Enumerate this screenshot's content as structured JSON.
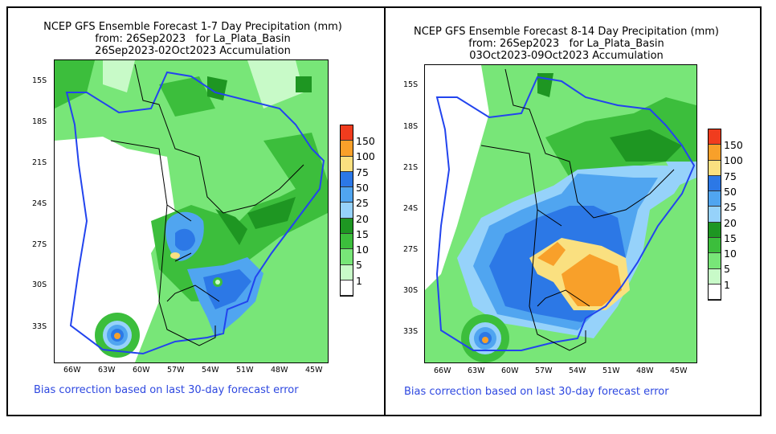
{
  "left_panel": {
    "title": [
      "NCEP GFS Ensemble Forecast 1-7 Day Precipitation (mm)",
      "from: 26Sep2023   for La_Plata_Basin",
      "26Sep2023-02Oct2023 Accumulation"
    ],
    "note": "Bias correction based on last 30-day forecast error"
  },
  "right_panel": {
    "title": [
      "NCEP GFS Ensemble Forecast 8-14 Day Precipitation (mm)",
      "from: 26Sep2023   for La_Plata_Basin",
      "03Oct2023-09Oct2023 Accumulation"
    ],
    "note": "Bias correction based on last 30-day forecast error"
  },
  "lat_labels": [
    "15S",
    "18S",
    "21S",
    "24S",
    "27S",
    "30S",
    "33S"
  ],
  "lon_labels": [
    "66W",
    "63W",
    "60W",
    "57W",
    "54W",
    "51W",
    "48W",
    "45W"
  ],
  "legend": {
    "labels": [
      "150",
      "100",
      "75",
      "50",
      "25",
      "20",
      "15",
      "10",
      "5",
      "1"
    ],
    "colors": [
      "#f03c1e",
      "#f8a02a",
      "#fae080",
      "#2c78e6",
      "#50a5f0",
      "#96d2fa",
      "#1e9622",
      "#3cbe3c",
      "#78e678",
      "#c8fac8",
      "#ffffff"
    ]
  }
}
